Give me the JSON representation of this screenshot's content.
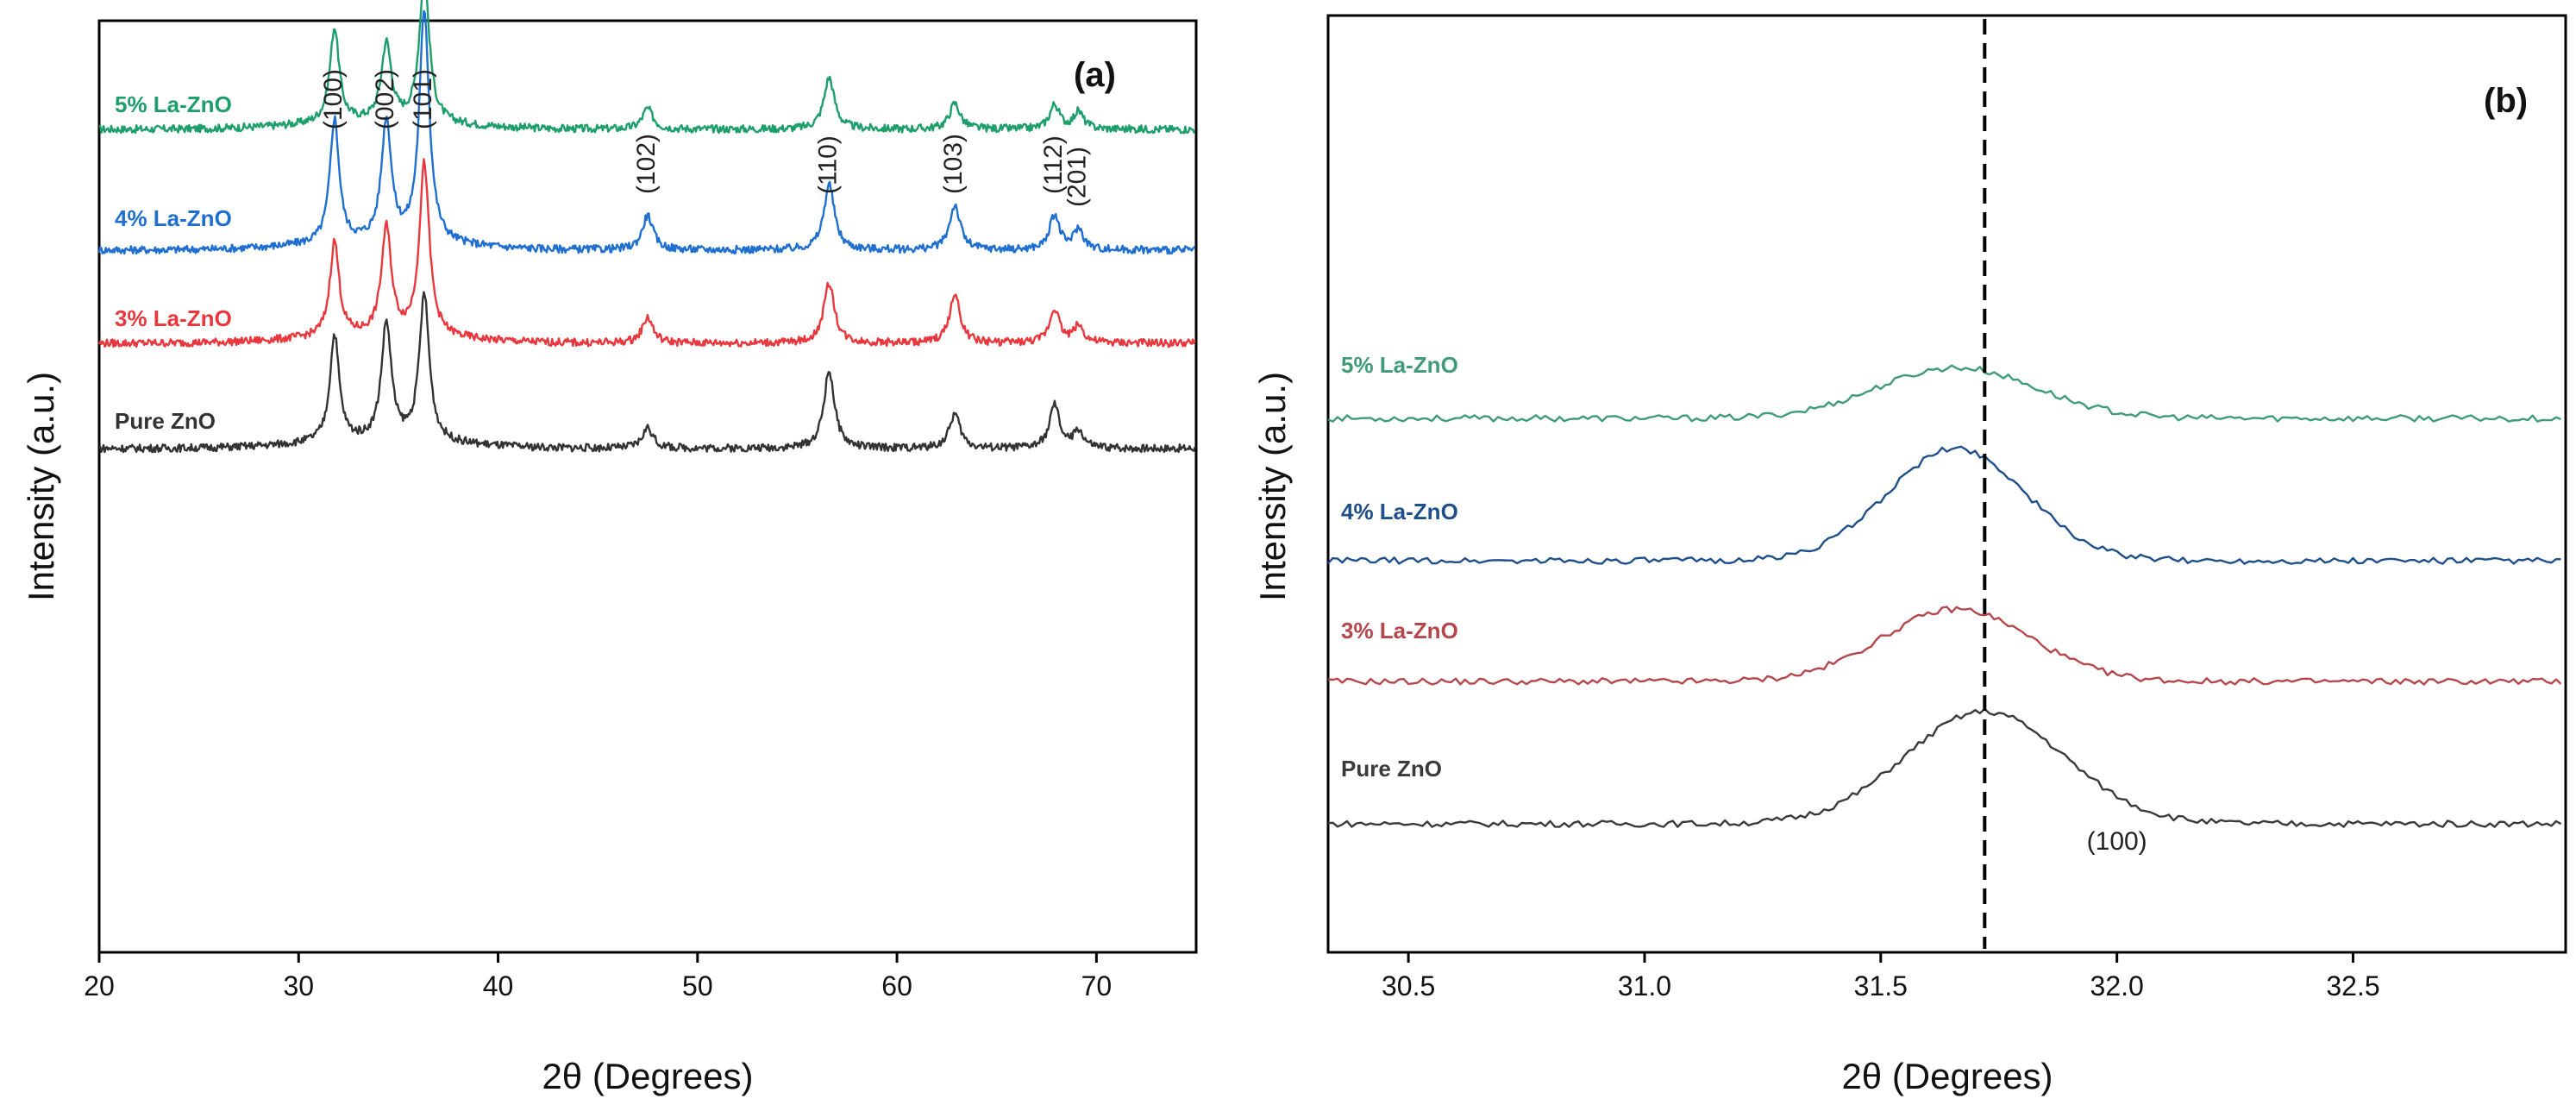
{
  "chart_data": [
    {
      "id": "a",
      "type": "line",
      "panel_label": "(a)",
      "title": "",
      "xlabel": "2θ (Degrees)",
      "ylabel": "Intensity (a.u.)",
      "xlim": [
        20,
        75
      ],
      "xticks": [
        20,
        30,
        40,
        50,
        60,
        70
      ],
      "xtick_labels": [
        "20",
        "30",
        "40",
        "50",
        "60",
        "70"
      ],
      "grid": false,
      "peak_labels": [
        {
          "label": "(100)",
          "x": 31.8
        },
        {
          "label": "(002)",
          "x": 34.4
        },
        {
          "label": "(101)",
          "x": 36.3
        },
        {
          "label": "(102)",
          "x": 47.5
        },
        {
          "label": "(110)",
          "x": 56.6
        },
        {
          "label": "(103)",
          "x": 62.9
        },
        {
          "label": "(112)",
          "x": 67.9
        },
        {
          "label": "(201)",
          "x": 69.1
        }
      ],
      "peaks": [
        {
          "x": 31.8,
          "w": 0.28
        },
        {
          "x": 34.4,
          "w": 0.3
        },
        {
          "x": 36.3,
          "w": 0.3
        },
        {
          "x": 47.5,
          "w": 0.32
        },
        {
          "x": 56.6,
          "w": 0.32
        },
        {
          "x": 62.9,
          "w": 0.32
        },
        {
          "x": 67.9,
          "w": 0.3
        },
        {
          "x": 69.1,
          "w": 0.3
        }
      ],
      "series": [
        {
          "name": "5% La-ZnO",
          "color": "#1e9e6a",
          "offset": 3.0,
          "heights": [
            0.55,
            0.45,
            0.85,
            0.12,
            0.3,
            0.15,
            0.14,
            0.1
          ]
        },
        {
          "name": "4% La-ZnO",
          "color": "#1f6fd0",
          "offset": 2.0,
          "heights": [
            0.72,
            0.7,
            1.35,
            0.2,
            0.38,
            0.26,
            0.2,
            0.12
          ]
        },
        {
          "name": "3% La-ZnO",
          "color": "#e8383e",
          "offset": 1.0,
          "heights": [
            0.55,
            0.62,
            1.0,
            0.15,
            0.35,
            0.28,
            0.2,
            0.1
          ]
        },
        {
          "name": "Pure ZnO",
          "color": "#333333",
          "offset": 0.0,
          "heights": [
            0.62,
            0.68,
            0.85,
            0.12,
            0.45,
            0.2,
            0.25,
            0.1
          ]
        }
      ]
    },
    {
      "id": "b",
      "type": "line",
      "panel_label": "(b)",
      "title": "",
      "xlabel": "2θ (Degrees)",
      "ylabel": "Intensity (a.u.)",
      "xlim": [
        30.33,
        32.95
      ],
      "xticks": [
        30.5,
        31.0,
        31.5,
        32.0,
        32.5
      ],
      "xtick_labels": [
        "30.5",
        "31.0",
        "31.5",
        "32.0",
        "32.5"
      ],
      "grid": false,
      "reference_line_x": 31.72,
      "annotation": "(100)",
      "annotation_x": 32.0,
      "series": [
        {
          "name": "5% La-ZnO",
          "color": "#3f9c76",
          "offset": 3.0,
          "peak_x": 31.66,
          "peak_height": 0.28,
          "width": 0.3
        },
        {
          "name": "4% La-ZnO",
          "color": "#1f4f8a",
          "offset": 2.0,
          "peak_x": 31.66,
          "peak_height": 0.62,
          "width": 0.26
        },
        {
          "name": "3% La-ZnO",
          "color": "#b5474c",
          "offset": 1.0,
          "peak_x": 31.66,
          "peak_height": 0.4,
          "width": 0.28
        },
        {
          "name": "Pure ZnO",
          "color": "#3a3a3a",
          "offset": 0.0,
          "peak_x": 31.72,
          "peak_height": 0.62,
          "width": 0.3
        }
      ]
    }
  ]
}
